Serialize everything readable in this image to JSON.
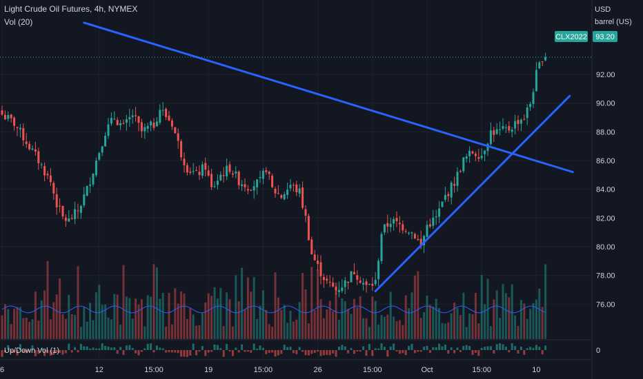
{
  "header": {
    "title": "Light Crude Oil Futures, 4h, NYMEX",
    "vol_label": "Vol (20)",
    "updown_label": "Up/Down Vol (1)"
  },
  "axis": {
    "unit_currency": "USD",
    "unit_measure": "barrel (US)",
    "sub_zero": "0"
  },
  "price_tag": {
    "symbol": "CLX2022",
    "value": "93.20"
  },
  "colors": {
    "background": "#131722",
    "up": "#26a69a",
    "down": "#ef5350",
    "trendline": "#2962ff",
    "vol_ma": "#2962ff",
    "tag": "#26a69a",
    "text": "#d1d4dc",
    "grid": "#1e222d"
  },
  "chart_data": {
    "type": "candlestick",
    "title": "Light Crude Oil Futures, 4h, NYMEX",
    "ylabel": "USD barrel (US)",
    "ylim": [
      75.2,
      94.3
    ],
    "y_ticks": [
      "92.00",
      "90.00",
      "88.00",
      "86.00",
      "84.00",
      "82.00",
      "80.00",
      "78.00",
      "76.00"
    ],
    "x_ticks": [
      "6",
      "12",
      "15:00",
      "19",
      "15:00",
      "26",
      "15:00",
      "Oct",
      "15:00",
      "10"
    ],
    "x_tick_bar_index": [
      0,
      32,
      50,
      68,
      86,
      104,
      122,
      140,
      158,
      176
    ],
    "last_price": 93.2,
    "bars": 180,
    "close_anchors": [
      [
        0,
        89.2
      ],
      [
        4,
        88.6
      ],
      [
        8,
        87.3
      ],
      [
        12,
        86.0
      ],
      [
        16,
        84.5
      ],
      [
        18,
        83.0
      ],
      [
        20,
        82.0
      ],
      [
        22,
        81.8
      ],
      [
        25,
        82.5
      ],
      [
        28,
        84.0
      ],
      [
        31,
        86.0
      ],
      [
        34,
        88.0
      ],
      [
        37,
        89.0
      ],
      [
        40,
        88.3
      ],
      [
        43,
        89.2
      ],
      [
        46,
        88.0
      ],
      [
        50,
        88.5
      ],
      [
        52,
        89.6
      ],
      [
        56,
        88.6
      ],
      [
        59,
        86.5
      ],
      [
        61,
        85.5
      ],
      [
        64,
        85.0
      ],
      [
        67,
        85.6
      ],
      [
        69,
        84.0
      ],
      [
        72,
        85.0
      ],
      [
        75,
        85.5
      ],
      [
        78,
        84.6
      ],
      [
        81,
        84.2
      ],
      [
        85,
        84.5
      ],
      [
        87,
        85.5
      ],
      [
        89,
        84.0
      ],
      [
        92,
        83.5
      ],
      [
        95,
        84.3
      ],
      [
        98,
        83.8
      ],
      [
        100,
        82.0
      ],
      [
        102,
        79.5
      ],
      [
        104,
        78.6
      ],
      [
        107,
        77.5
      ],
      [
        110,
        77.0
      ],
      [
        113,
        77.5
      ],
      [
        116,
        78.3
      ],
      [
        120,
        77.2
      ],
      [
        123,
        77.5
      ],
      [
        125,
        81.0
      ],
      [
        128,
        81.8
      ],
      [
        131,
        81.5
      ],
      [
        134,
        81.2
      ],
      [
        136,
        80.8
      ],
      [
        138,
        80.0
      ],
      [
        140,
        81.5
      ],
      [
        143,
        82.0
      ],
      [
        146,
        83.5
      ],
      [
        149,
        84.5
      ],
      [
        152,
        86.0
      ],
      [
        155,
        86.6
      ],
      [
        158,
        86.4
      ],
      [
        161,
        88.0
      ],
      [
        164,
        88.0
      ],
      [
        167,
        88.2
      ],
      [
        170,
        88.8
      ],
      [
        172,
        89.0
      ],
      [
        174,
        90.0
      ],
      [
        176,
        92.0
      ],
      [
        178,
        93.2
      ],
      [
        179,
        93.2
      ]
    ],
    "trendlines": [
      {
        "name": "",
        "from": {
          "bar": 27,
          "price": 95.6
        },
        "to": {
          "bar": 188,
          "price": 85.2
        }
      },
      {
        "name": "",
        "from": {
          "bar": 123,
          "price": 76.9
        },
        "to": {
          "bar": 187,
          "price": 90.5
        }
      }
    ],
    "volume": {
      "label": "Vol (20)",
      "ma_period": 20,
      "max_height_price_units": 3.1,
      "relative_ceiling": 1.0
    },
    "updown_volume": {
      "label": "Up/Down Vol (1)",
      "zero_label": "0"
    },
    "grid": true
  }
}
